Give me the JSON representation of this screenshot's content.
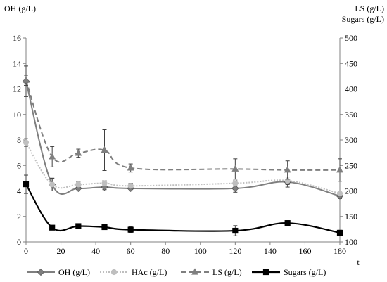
{
  "chart_data": {
    "type": "line",
    "y_left_title": "OH (g/L)",
    "y_right_title_line1": "LS (g/L)",
    "y_right_title_line2": "Sugars (g/L)",
    "x_title": "t",
    "xlim": [
      0,
      180
    ],
    "ylim_left": [
      0,
      16
    ],
    "ylim_right": [
      100,
      500
    ],
    "x_ticks": [
      "0",
      "20",
      "40",
      "60",
      "80",
      "100",
      "120",
      "140",
      "160",
      "180"
    ],
    "y_left_ticks": [
      "0",
      "2",
      "4",
      "6",
      "8",
      "10",
      "12",
      "14",
      "16"
    ],
    "y_right_ticks": [
      "100",
      "150",
      "200",
      "250",
      "300",
      "350",
      "400",
      "450",
      "500"
    ],
    "grid": false,
    "legend_position": "bottom",
    "series": [
      {
        "name": "OH (g/L)",
        "axis": "left",
        "color": "#7f7f7f",
        "line_style": "solid",
        "marker": "diamond",
        "x": [
          0,
          15,
          30,
          45,
          60,
          120,
          150,
          180
        ],
        "y": [
          12.6,
          4.5,
          4.2,
          4.3,
          4.2,
          4.2,
          4.7,
          3.6
        ],
        "error": [
          1.2,
          0.5,
          0.2,
          0.2,
          0.2,
          0.3,
          0.4,
          0.2
        ]
      },
      {
        "name": "HAc (g/L)",
        "axis": "left",
        "color": "#bfbfbf",
        "line_style": "dotted",
        "marker": "circle",
        "x": [
          0,
          15,
          30,
          45,
          60,
          120,
          150,
          180
        ],
        "y": [
          7.8,
          4.5,
          4.5,
          4.6,
          4.4,
          4.6,
          4.8,
          3.8
        ],
        "error": [
          0.3,
          0.5,
          0.2,
          0.2,
          0.2,
          0.2,
          0.3,
          0.2
        ]
      },
      {
        "name": "LS (g/L)",
        "axis": "right",
        "color": "#7f7f7f",
        "line_style": "dashed",
        "marker": "triangle",
        "x": [
          0,
          15,
          30,
          45,
          60,
          120,
          150,
          180
        ],
        "y": [
          417,
          267,
          274,
          280,
          245,
          243,
          241,
          241
        ],
        "error": [
          10,
          20,
          8,
          40,
          8,
          20,
          18,
          22
        ]
      },
      {
        "name": "Sugars (g/L)",
        "axis": "right",
        "color": "#000000",
        "line_style": "solid",
        "marker": "square",
        "x": [
          0,
          15,
          30,
          45,
          60,
          120,
          150,
          180
        ],
        "y": [
          213,
          128,
          131,
          129,
          124,
          122,
          137,
          118
        ],
        "error": [
          18,
          3,
          3,
          3,
          6,
          10,
          5,
          5
        ]
      }
    ]
  }
}
